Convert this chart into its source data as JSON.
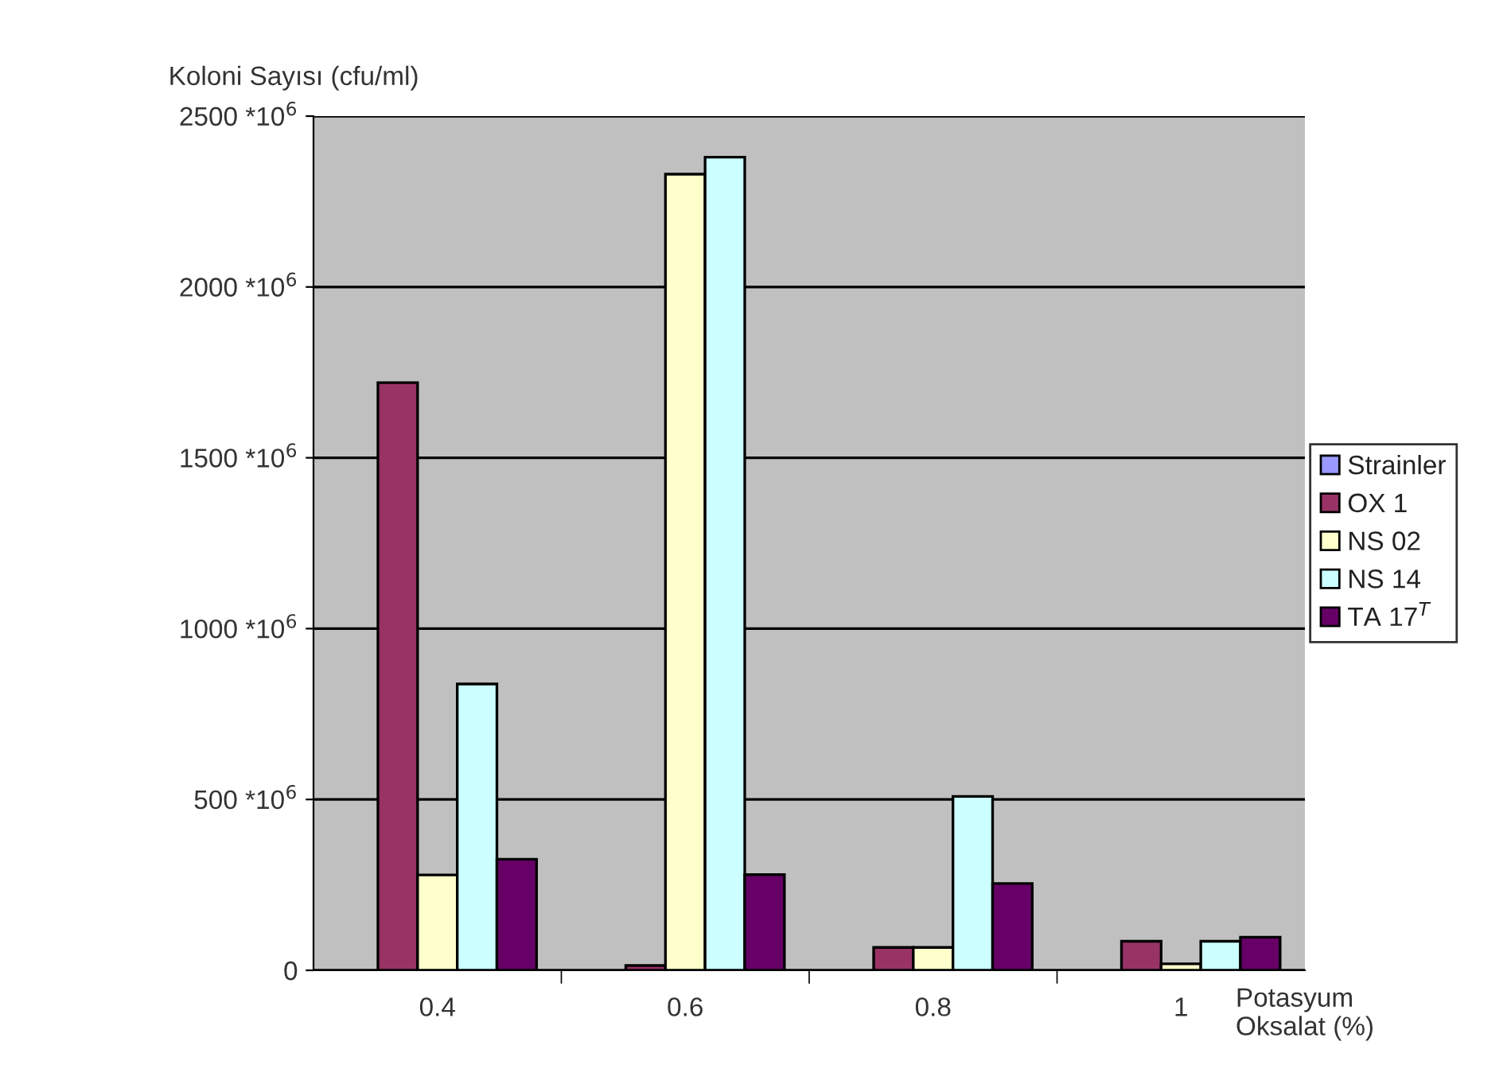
{
  "chart_data": {
    "type": "bar",
    "ylabel": "Koloni Sayısı (cfu/ml)",
    "xlabel": "Potasyum\nOksalat (%)",
    "categories": [
      "0.4",
      "0.6",
      "0.8",
      "1"
    ],
    "series": [
      {
        "name": "Strainler",
        "color": "#9999ff",
        "values": [
          null,
          null,
          null,
          null
        ]
      },
      {
        "name": "OX 1",
        "color": "#993366",
        "values": [
          1720000000,
          14000000,
          67000000,
          85000000
        ]
      },
      {
        "name": "NS 02",
        "color": "#ffffcc",
        "values": [
          279000000,
          2330000000,
          67000000,
          19000000
        ]
      },
      {
        "name": "NS 14",
        "color": "#ccffff",
        "values": [
          838000000,
          2380000000,
          509000000,
          85000000
        ]
      },
      {
        "name": "TA 17$^{T}$",
        "color": "#660066",
        "values": [
          325000000,
          280000000,
          254000000,
          97000000
        ]
      }
    ],
    "ylim": [
      0,
      2500000000
    ],
    "yticks": [
      0,
      {
        "value": 500000000,
        "label": "500 *10$^{6}$"
      },
      {
        "value": 1000000000,
        "label": "1000 *10$^{6}$"
      },
      {
        "value": 1500000000,
        "label": "1500 *10$^{6}$"
      },
      {
        "value": 2000000000,
        "label": "2000 *10$^{6}$"
      },
      {
        "value": 2500000000,
        "label": "2500 *10$^{6}$"
      }
    ],
    "grid": "y",
    "legend": "right"
  }
}
